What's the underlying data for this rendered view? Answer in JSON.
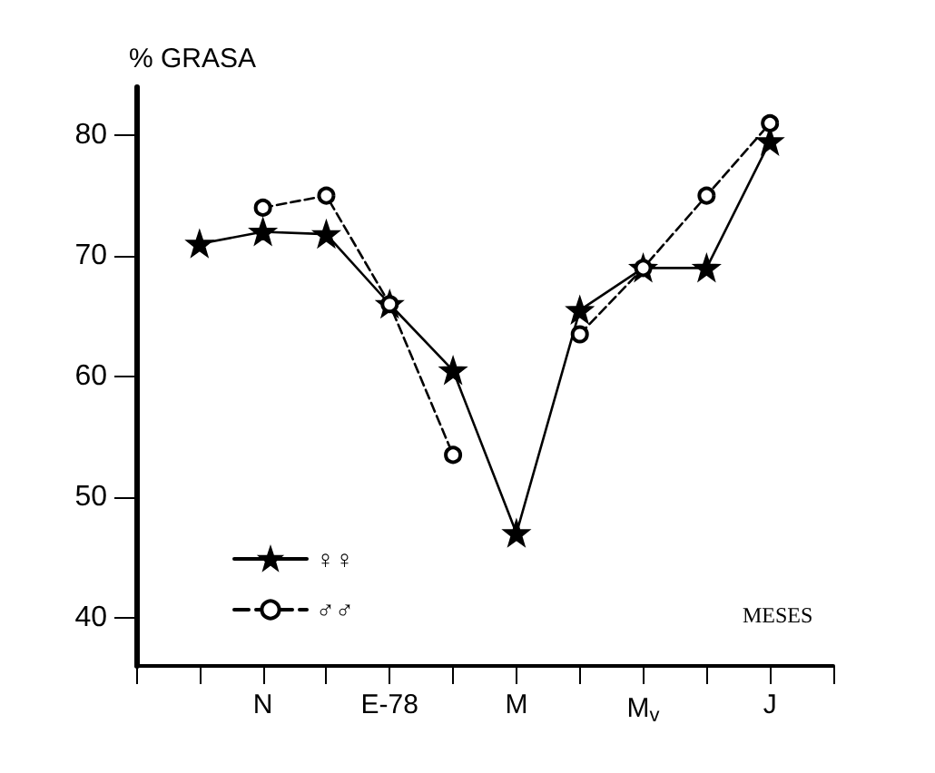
{
  "chart_data": {
    "type": "line",
    "ylabel": "% GRASA",
    "xlabel": "MESES",
    "categories": [
      null,
      null,
      "N",
      null,
      "E-78",
      null,
      "M",
      null,
      "M$_{v}$",
      null,
      "J",
      null
    ],
    "series": [
      {
        "name": "♀♀",
        "color": "#000000",
        "marker": "star",
        "line_style": "solid",
        "values": [
          null,
          71,
          72,
          71.8,
          66,
          60.5,
          47,
          65.5,
          69,
          69,
          79.5,
          null
        ]
      },
      {
        "name": "♂♂",
        "color": "#000000",
        "marker": "circle",
        "line_style": "dashed",
        "values": [
          null,
          null,
          74,
          75,
          66,
          53.5,
          null,
          63.5,
          69,
          75,
          81,
          null
        ]
      }
    ],
    "ylim": [
      36,
      84
    ],
    "yticks": [
      40,
      50,
      60,
      70,
      80
    ],
    "grid": false,
    "legend": "bottom left"
  }
}
